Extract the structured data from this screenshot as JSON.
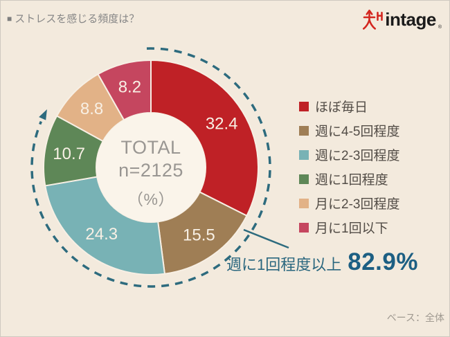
{
  "title": {
    "marker": "■",
    "text": "ストレスを感じる頻度は？"
  },
  "logo": {
    "text": "intage",
    "reg_mark": "®",
    "mark_color": "#d3261f",
    "text_color": "#1b1b1b"
  },
  "chart_data": {
    "type": "pie",
    "subtype": "donut",
    "direction": "clockwise",
    "start_angle_deg": 0,
    "legend_position": "right",
    "center_label": {
      "line1": "TOTAL",
      "line2": "n=2125",
      "line3": "（%）"
    },
    "segments": [
      {
        "label": "ほぼ毎日",
        "value": 32.4,
        "color": "#bf2126"
      },
      {
        "label": "週に4-5回程度",
        "value": 15.5,
        "color": "#9f7e55"
      },
      {
        "label": "週に2-3回程度",
        "value": 24.3,
        "color": "#78b2b5"
      },
      {
        "label": "週に1回程度",
        "value": 10.7,
        "color": "#5e8757"
      },
      {
        "label": "月に2-3回程度",
        "value": 8.8,
        "color": "#e2b287"
      },
      {
        "label": "月に1回以下",
        "value": 8.2,
        "color": "#c5465f"
      }
    ],
    "annotation": {
      "label": "週に1回程度以上",
      "value": "82.9%",
      "covers_percent": 82.9,
      "color": "#2d6b7e"
    }
  },
  "footer": {
    "base_note": "ベース：全体"
  }
}
